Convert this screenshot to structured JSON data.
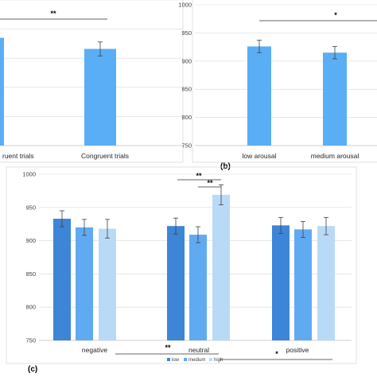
{
  "chart_data": [
    {
      "type": "bar",
      "panel_label": "",
      "categories": [
        "ruent trials",
        "Congruent trials"
      ],
      "values": [
        935,
        916
      ],
      "errors": [
        null,
        12
      ],
      "color": "#5aaef5",
      "ylim": [
        750,
        1000
      ],
      "grid": true,
      "significance": [
        {
          "label": "**",
          "between": [
            0,
            1
          ]
        }
      ]
    },
    {
      "type": "bar",
      "panel_label": "(b)",
      "categories": [
        "low arousal",
        "medium arousal"
      ],
      "values": [
        926,
        915
      ],
      "errors": [
        11,
        11
      ],
      "color": "#5aaef5",
      "yticks": [
        750,
        800,
        850,
        900,
        950,
        1000
      ],
      "ylim": [
        750,
        1000
      ],
      "grid": true,
      "significance": [
        {
          "label": "*",
          "between": [
            0,
            2
          ]
        }
      ]
    },
    {
      "type": "bar",
      "panel_label": "(c)",
      "categories": [
        "negative",
        "neutral",
        "positive"
      ],
      "series": [
        {
          "name": "low",
          "values": [
            933,
            922,
            923
          ],
          "errors": [
            12,
            12,
            12
          ],
          "color": "#3d85d6"
        },
        {
          "name": "medium",
          "values": [
            920,
            909,
            917
          ],
          "errors": [
            12,
            12,
            12
          ],
          "color": "#60aaf2"
        },
        {
          "name": "high",
          "values": [
            918,
            969,
            922
          ],
          "errors": [
            14,
            15,
            13
          ],
          "color": "#b9daf7"
        }
      ],
      "yticks": [
        750,
        800,
        850,
        900,
        950,
        1000
      ],
      "ylim": [
        750,
        1000
      ],
      "grid": true,
      "legend": "bottom-center",
      "significance": [
        {
          "label": "**",
          "group": 1,
          "between": [
            0,
            2
          ]
        },
        {
          "label": "**",
          "group": 1,
          "between": [
            1,
            2
          ]
        },
        {
          "label": "**",
          "between_groups": [
            0,
            1
          ]
        },
        {
          "label": "*",
          "between_groups": [
            1,
            2
          ]
        }
      ]
    }
  ]
}
